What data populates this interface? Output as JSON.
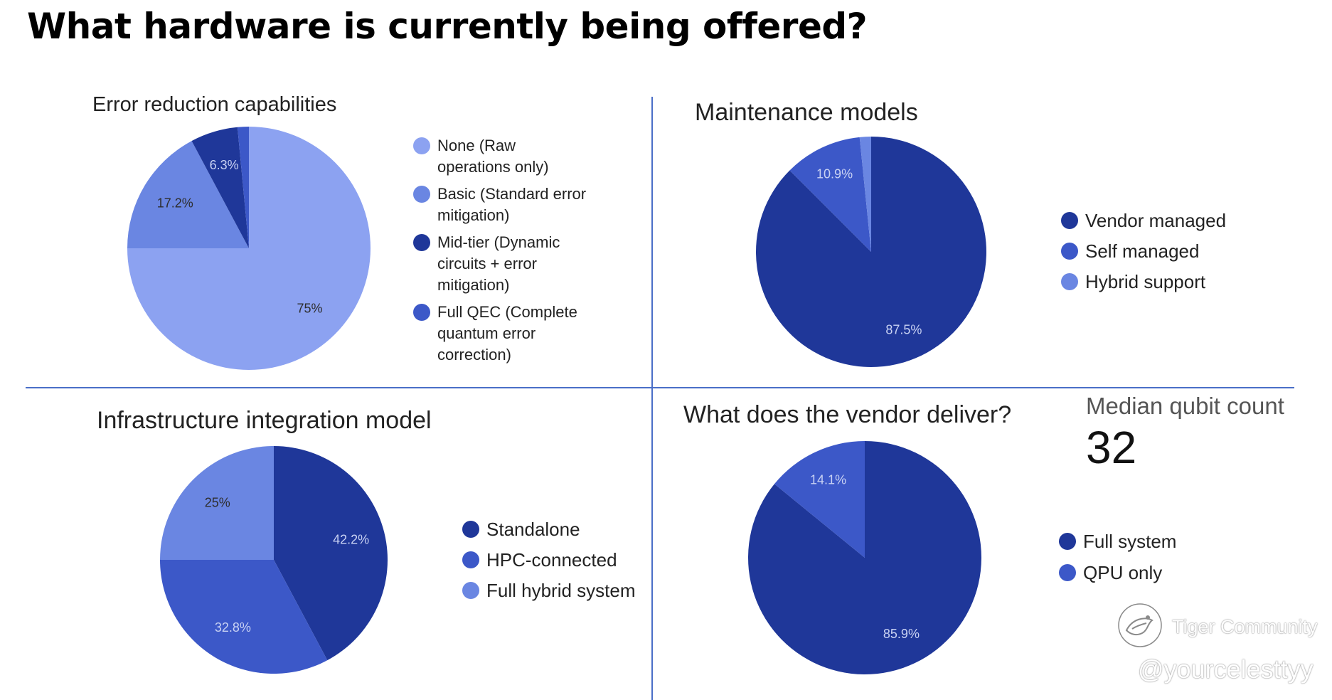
{
  "title": "What hardware is currently being offered?",
  "chart_data": [
    {
      "type": "pie",
      "title": "Error reduction capabilities",
      "categories": [
        "None (Raw operations only)",
        "Basic (Standard error mitigation)",
        "Mid-tier (Dynamic circuits + error mitigation)",
        "Full QEC (Complete quantum error correction)"
      ],
      "values": [
        75,
        17.2,
        6.3,
        1.5
      ],
      "data_labels": [
        "75%",
        "17.2%",
        "6.3%",
        ""
      ],
      "colors": [
        "#8ca2f1",
        "#6a86e2",
        "#1f3799",
        "#3c58c8"
      ],
      "legend_position": "right",
      "legend": [
        "None (Raw\noperations only)",
        "Basic (Standard error\nmitigation)",
        "Mid-tier (Dynamic\ncircuits + error\nmitigation)",
        "Full QEC (Complete\nquantum error\ncorrection)"
      ]
    },
    {
      "type": "pie",
      "title": "Maintenance models",
      "categories": [
        "Vendor managed",
        "Self managed",
        "Hybrid support"
      ],
      "values": [
        87.5,
        10.9,
        1.6
      ],
      "data_labels": [
        "87.5%",
        "10.9%",
        ""
      ],
      "colors": [
        "#1f3799",
        "#3c58c8",
        "#6a86e2"
      ],
      "legend_position": "right"
    },
    {
      "type": "pie",
      "title": "Infrastructure integration model",
      "categories": [
        "Standalone",
        "HPC-connected",
        "Full hybrid system"
      ],
      "values": [
        42.2,
        32.8,
        25
      ],
      "data_labels": [
        "42.2%",
        "32.8%",
        "25%"
      ],
      "colors": [
        "#1f3799",
        "#3c58c8",
        "#6a86e2"
      ],
      "legend_position": "right"
    },
    {
      "type": "pie",
      "title": "What does the vendor deliver?",
      "categories": [
        "Full system",
        "QPU only"
      ],
      "values": [
        85.9,
        14.1
      ],
      "data_labels": [
        "85.9%",
        "14.1%"
      ],
      "colors": [
        "#1f3799",
        "#3c58c8"
      ],
      "legend_position": "right"
    }
  ],
  "kpi": {
    "label": "Median qubit count",
    "value": "32"
  },
  "watermark": {
    "brand": "Tiger Community",
    "handle": "@yourcelesttyy"
  }
}
